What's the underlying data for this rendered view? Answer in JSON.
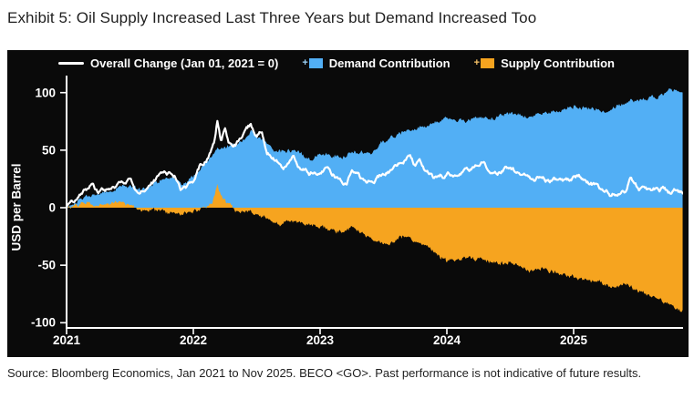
{
  "header": {
    "title": "Exhibit 5: Oil Supply Increased Last Three Years but Demand Increased Too"
  },
  "legend": {
    "overall": "Overall Change (Jan 01, 2021 = 0)",
    "demand": "Demand Contribution",
    "supply": "Supply Contribution",
    "plus": "+"
  },
  "footer": {
    "source": "Source: Bloomberg Economics, Jan 2021 to Nov 2025. BECO <GO>. Past performance is not indicative of future results."
  },
  "colors": {
    "panel_bg": "#0a0a0a",
    "demand": "#52aff5",
    "supply": "#f6a41f",
    "overall_line": "#ffffff",
    "axis": "#ffffff"
  },
  "chart_data": {
    "type": "area",
    "title": "Exhibit 5: Oil Supply Increased Last Three Years but Demand Increased Too",
    "xlabel": "",
    "ylabel": "USD per Barrel",
    "x_ticks": [
      "2021",
      "2022",
      "2023",
      "2024",
      "2025"
    ],
    "y_ticks": [
      "100",
      "50",
      "0",
      "-50",
      "-100"
    ],
    "ylim": [
      -105,
      115
    ],
    "x_unit": "decimal years since Jan 01 2021",
    "x_range": [
      0,
      4.86
    ],
    "grid": false,
    "legend_position": "top",
    "series": [
      {
        "name": "Demand Contribution",
        "color": "#52aff5",
        "style": "area-from-zero",
        "points": [
          [
            0,
            1
          ],
          [
            0.08,
            5
          ],
          [
            0.17,
            11
          ],
          [
            0.25,
            11
          ],
          [
            0.33,
            14
          ],
          [
            0.42,
            17
          ],
          [
            0.5,
            19
          ],
          [
            0.58,
            16
          ],
          [
            0.67,
            19
          ],
          [
            0.75,
            24
          ],
          [
            0.83,
            25
          ],
          [
            0.92,
            21
          ],
          [
            1.0,
            27
          ],
          [
            1.08,
            36
          ],
          [
            1.17,
            48
          ],
          [
            1.19,
            52
          ],
          [
            1.25,
            52
          ],
          [
            1.33,
            54
          ],
          [
            1.42,
            62
          ],
          [
            1.46,
            67
          ],
          [
            1.5,
            62
          ],
          [
            1.58,
            56
          ],
          [
            1.67,
            48
          ],
          [
            1.75,
            50
          ],
          [
            1.83,
            48
          ],
          [
            1.92,
            42
          ],
          [
            2.0,
            47
          ],
          [
            2.08,
            46
          ],
          [
            2.17,
            43
          ],
          [
            2.25,
            49
          ],
          [
            2.33,
            47
          ],
          [
            2.42,
            49
          ],
          [
            2.5,
            58
          ],
          [
            2.58,
            62
          ],
          [
            2.67,
            66
          ],
          [
            2.75,
            69
          ],
          [
            2.83,
            71
          ],
          [
            2.92,
            75
          ],
          [
            3.0,
            78
          ],
          [
            3.08,
            76
          ],
          [
            3.17,
            76
          ],
          [
            3.25,
            79
          ],
          [
            3.33,
            77
          ],
          [
            3.42,
            80
          ],
          [
            3.5,
            82
          ],
          [
            3.58,
            80
          ],
          [
            3.67,
            79
          ],
          [
            3.75,
            82
          ],
          [
            3.83,
            82
          ],
          [
            3.92,
            85
          ],
          [
            4.0,
            88
          ],
          [
            4.08,
            87
          ],
          [
            4.17,
            86
          ],
          [
            4.25,
            83
          ],
          [
            4.33,
            87
          ],
          [
            4.42,
            92
          ],
          [
            4.5,
            93
          ],
          [
            4.58,
            95
          ],
          [
            4.67,
            97
          ],
          [
            4.75,
            101
          ],
          [
            4.79,
            103
          ],
          [
            4.83,
            101
          ],
          [
            4.86,
            99
          ]
        ]
      },
      {
        "name": "Supply Contribution",
        "color": "#f6a41f",
        "style": "area-from-zero",
        "points": [
          [
            0,
            0
          ],
          [
            0.06,
            2
          ],
          [
            0.13,
            4
          ],
          [
            0.17,
            5
          ],
          [
            0.21,
            3
          ],
          [
            0.25,
            2
          ],
          [
            0.33,
            4
          ],
          [
            0.42,
            4
          ],
          [
            0.5,
            3
          ],
          [
            0.58,
            -3
          ],
          [
            0.67,
            -2
          ],
          [
            0.75,
            -3
          ],
          [
            0.83,
            -5
          ],
          [
            0.92,
            -5
          ],
          [
            1.0,
            -3
          ],
          [
            1.08,
            1
          ],
          [
            1.15,
            4
          ],
          [
            1.19,
            19
          ],
          [
            1.23,
            8
          ],
          [
            1.29,
            3
          ],
          [
            1.33,
            -3
          ],
          [
            1.42,
            -4
          ],
          [
            1.5,
            -6
          ],
          [
            1.58,
            -9
          ],
          [
            1.63,
            -13
          ],
          [
            1.67,
            -15
          ],
          [
            1.75,
            -11
          ],
          [
            1.83,
            -13
          ],
          [
            1.92,
            -15
          ],
          [
            2.0,
            -17
          ],
          [
            2.08,
            -19
          ],
          [
            2.17,
            -21
          ],
          [
            2.25,
            -17
          ],
          [
            2.33,
            -23
          ],
          [
            2.42,
            -27
          ],
          [
            2.5,
            -32
          ],
          [
            2.58,
            -30
          ],
          [
            2.63,
            -25
          ],
          [
            2.71,
            -26
          ],
          [
            2.79,
            -30
          ],
          [
            2.83,
            -34
          ],
          [
            2.92,
            -40
          ],
          [
            3.0,
            -46
          ],
          [
            3.08,
            -45
          ],
          [
            3.17,
            -43
          ],
          [
            3.25,
            -45
          ],
          [
            3.33,
            -47
          ],
          [
            3.42,
            -49
          ],
          [
            3.5,
            -47
          ],
          [
            3.58,
            -51
          ],
          [
            3.67,
            -55
          ],
          [
            3.75,
            -53
          ],
          [
            3.83,
            -56
          ],
          [
            3.92,
            -58
          ],
          [
            4.0,
            -61
          ],
          [
            4.08,
            -62
          ],
          [
            4.17,
            -64
          ],
          [
            4.25,
            -67
          ],
          [
            4.33,
            -70
          ],
          [
            4.42,
            -66
          ],
          [
            4.5,
            -72
          ],
          [
            4.58,
            -75
          ],
          [
            4.67,
            -79
          ],
          [
            4.75,
            -84
          ],
          [
            4.79,
            -86
          ],
          [
            4.83,
            -90
          ],
          [
            4.86,
            -91
          ]
        ]
      },
      {
        "name": "Overall Change (Jan 01, 2021 = 0)",
        "color": "#ffffff",
        "style": "line",
        "points": [
          [
            0,
            0
          ],
          [
            0.04,
            4
          ],
          [
            0.1,
            10
          ],
          [
            0.16,
            15
          ],
          [
            0.21,
            20
          ],
          [
            0.25,
            13
          ],
          [
            0.33,
            17
          ],
          [
            0.42,
            22
          ],
          [
            0.5,
            25
          ],
          [
            0.56,
            13
          ],
          [
            0.63,
            15
          ],
          [
            0.7,
            23
          ],
          [
            0.78,
            33
          ],
          [
            0.85,
            30
          ],
          [
            0.9,
            18
          ],
          [
            0.95,
            17
          ],
          [
            1.0,
            22
          ],
          [
            1.05,
            35
          ],
          [
            1.12,
            45
          ],
          [
            1.17,
            60
          ],
          [
            1.19,
            77
          ],
          [
            1.22,
            58
          ],
          [
            1.25,
            68
          ],
          [
            1.28,
            55
          ],
          [
            1.33,
            55
          ],
          [
            1.38,
            62
          ],
          [
            1.45,
            71
          ],
          [
            1.5,
            62
          ],
          [
            1.54,
            68
          ],
          [
            1.58,
            50
          ],
          [
            1.63,
            45
          ],
          [
            1.67,
            40
          ],
          [
            1.71,
            36
          ],
          [
            1.75,
            42
          ],
          [
            1.79,
            44
          ],
          [
            1.83,
            38
          ],
          [
            1.88,
            32
          ],
          [
            1.92,
            28
          ],
          [
            1.96,
            32
          ],
          [
            2.0,
            32
          ],
          [
            2.04,
            34
          ],
          [
            2.08,
            30
          ],
          [
            2.17,
            23
          ],
          [
            2.21,
            21
          ],
          [
            2.25,
            32
          ],
          [
            2.29,
            30
          ],
          [
            2.33,
            24
          ],
          [
            2.42,
            23
          ],
          [
            2.5,
            30
          ],
          [
            2.58,
            34
          ],
          [
            2.67,
            42
          ],
          [
            2.71,
            44
          ],
          [
            2.75,
            36
          ],
          [
            2.79,
            38
          ],
          [
            2.83,
            30
          ],
          [
            2.92,
            25
          ],
          [
            3.0,
            28
          ],
          [
            3.08,
            31
          ],
          [
            3.17,
            34
          ],
          [
            3.25,
            38
          ],
          [
            3.29,
            40
          ],
          [
            3.33,
            32
          ],
          [
            3.42,
            33
          ],
          [
            3.5,
            34
          ],
          [
            3.58,
            28
          ],
          [
            3.67,
            22
          ],
          [
            3.71,
            26
          ],
          [
            3.75,
            26
          ],
          [
            3.83,
            23
          ],
          [
            3.92,
            22
          ],
          [
            4.0,
            26
          ],
          [
            4.04,
            29
          ],
          [
            4.08,
            24
          ],
          [
            4.17,
            20
          ],
          [
            4.25,
            13
          ],
          [
            4.29,
            11
          ],
          [
            4.33,
            13
          ],
          [
            4.42,
            14
          ],
          [
            4.45,
            27
          ],
          [
            4.48,
            19
          ],
          [
            4.5,
            17
          ],
          [
            4.54,
            15
          ],
          [
            4.58,
            15
          ],
          [
            4.63,
            16
          ],
          [
            4.67,
            14
          ],
          [
            4.71,
            16
          ],
          [
            4.75,
            12
          ],
          [
            4.79,
            14
          ],
          [
            4.86,
            13
          ]
        ]
      }
    ]
  }
}
